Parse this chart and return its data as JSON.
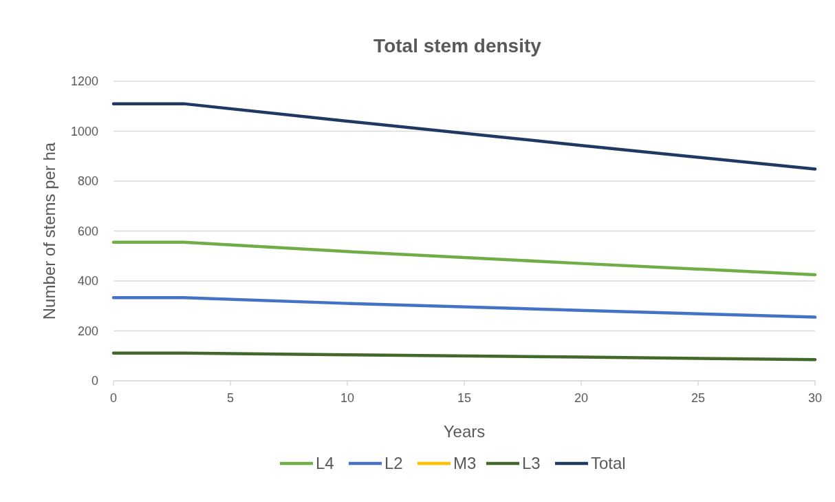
{
  "chart_data": {
    "type": "line",
    "title": "Total stem density",
    "xlabel": "Years",
    "ylabel": "Number of stems per ha",
    "x": [
      0,
      3,
      10,
      20,
      30
    ],
    "xlim": [
      0,
      30
    ],
    "xticks": [
      0,
      5,
      10,
      15,
      20,
      25,
      30
    ],
    "ylim": [
      0,
      1200
    ],
    "yticks": [
      0,
      200,
      400,
      600,
      800,
      1000,
      1200
    ],
    "grid": "y",
    "legend": "bottom",
    "marker": "none",
    "line_style": "solid",
    "series": [
      {
        "name": "L4",
        "color": "#70ad47",
        "values": [
          555,
          555,
          518,
          470,
          425
        ]
      },
      {
        "name": "L2",
        "color": "#4472c4",
        "values": [
          333,
          333,
          310,
          282,
          255
        ]
      },
      {
        "name": "M3",
        "color": "#ffc000",
        "values": [
          null,
          null,
          null,
          null,
          null
        ]
      },
      {
        "name": "L3",
        "color": "#43682b",
        "values": [
          111,
          111,
          104,
          95,
          85
        ]
      },
      {
        "name": "Total",
        "color": "#203864",
        "values": [
          1110,
          1110,
          1040,
          943,
          848
        ]
      }
    ]
  }
}
